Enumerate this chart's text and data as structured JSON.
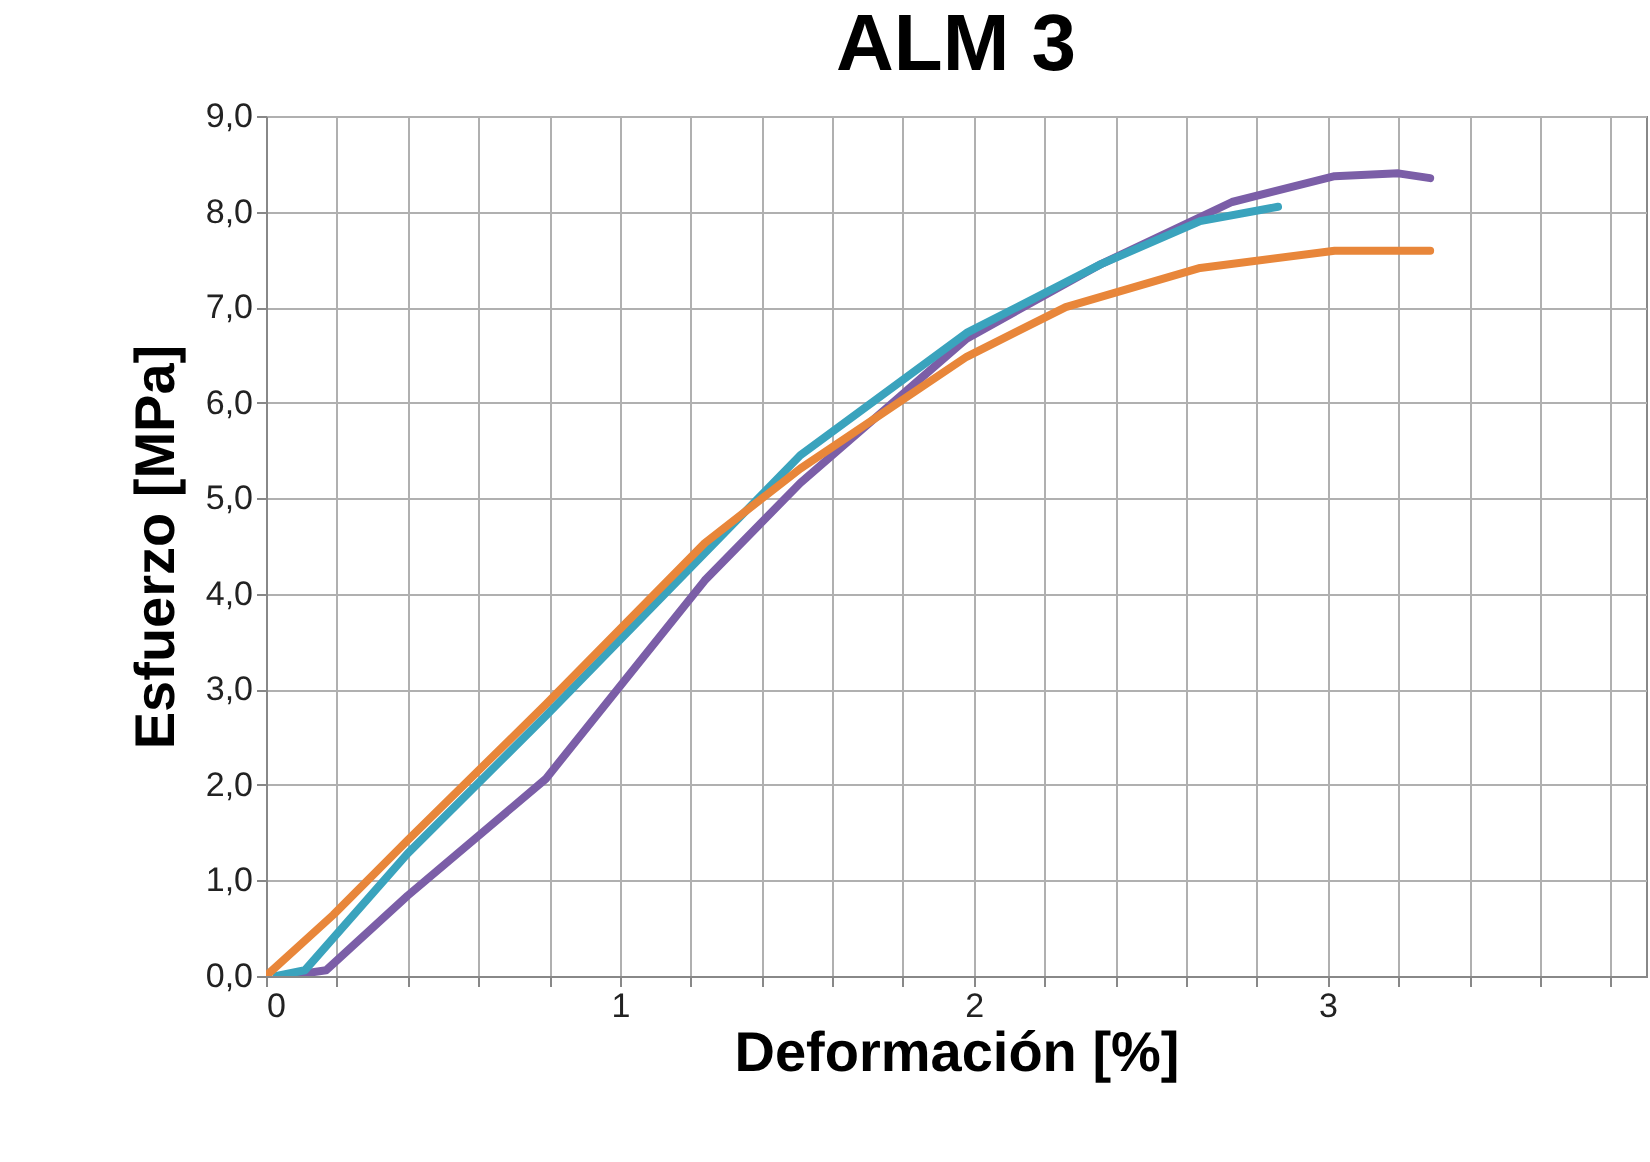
{
  "chart_data": {
    "type": "line",
    "title": "ALM 3",
    "xlabel": "Deformación [%]",
    "ylabel": "Esfuerzo [MPa]",
    "xlim": [
      0,
      3.9
    ],
    "xticks": [
      0,
      {
        "value": 0.2,
        "label": null
      },
      {
        "value": 0.4,
        "label": null
      },
      {
        "value": 0.6,
        "label": null
      },
      {
        "value": 0.8,
        "label": null
      },
      1,
      {
        "value": 1.2,
        "label": null
      },
      {
        "value": 1.4,
        "label": null
      },
      {
        "value": 1.6,
        "label": null
      },
      {
        "value": 1.8,
        "label": null
      },
      2,
      {
        "value": 2.2,
        "label": null
      },
      {
        "value": 2.4,
        "label": null
      },
      {
        "value": 2.6,
        "label": null
      },
      {
        "value": 2.8,
        "label": null
      },
      3,
      {
        "value": 3.2,
        "label": null
      },
      {
        "value": 3.4,
        "label": null
      },
      {
        "value": 3.6,
        "label": null
      },
      {
        "value": 3.8,
        "label": null
      }
    ],
    "ylim": [
      0,
      9
    ],
    "yticks": [
      {
        "value": 0,
        "label": "0,0"
      },
      {
        "value": 1,
        "label": "1,0"
      },
      {
        "value": 2,
        "label": "2,0"
      },
      {
        "value": 3,
        "label": "3,0"
      },
      {
        "value": 4,
        "label": "4,0"
      },
      {
        "value": 5,
        "label": "5,0"
      },
      {
        "value": 6,
        "label": "6,0"
      },
      {
        "value": 7,
        "label": "7,0"
      },
      {
        "value": 8,
        "label": "8,0"
      },
      {
        "value": 9,
        "label": "9,0"
      }
    ],
    "grid": true,
    "legend": false,
    "line_style": "solid",
    "series": [
      {
        "color": "#7b5ea7",
        "x": [
          0.06,
          0.17,
          0.4,
          0.79,
          1.24,
          1.51,
          1.98,
          2.36,
          2.73,
          3.02,
          3.2,
          3.29
        ],
        "values": [
          0,
          0.06,
          0.84,
          2.06,
          4.14,
          5.16,
          6.67,
          7.45,
          8.1,
          8.37,
          8.4,
          8.35
        ]
      },
      {
        "color": "#3aa3bd",
        "x": [
          0.03,
          0.11,
          0.4,
          0.79,
          1.51,
          1.98,
          2.36,
          2.64,
          2.86
        ],
        "values": [
          0,
          0.06,
          1.28,
          2.72,
          5.45,
          6.73,
          7.45,
          7.9,
          8.05
        ]
      },
      {
        "color": "#e8863a",
        "x": [
          0,
          0.19,
          0.4,
          0.79,
          1.24,
          1.51,
          1.98,
          2.26,
          2.64,
          3.02,
          3.29
        ],
        "values": [
          0,
          0.64,
          1.42,
          2.84,
          4.53,
          5.31,
          6.48,
          7.0,
          7.41,
          7.59,
          7.59
        ]
      }
    ]
  }
}
